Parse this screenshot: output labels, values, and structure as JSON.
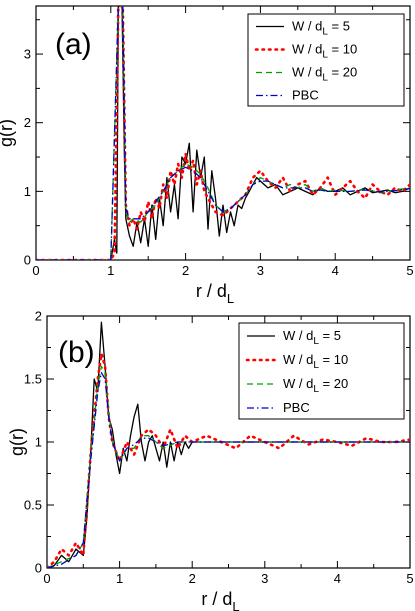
{
  "chart_data": [
    {
      "type": "line",
      "panel_label": "(a)",
      "xlabel_main": "r / d",
      "xlabel_sub": "L",
      "ylabel": "g(r)",
      "xlim": [
        0,
        5
      ],
      "ylim": [
        0,
        3.7
      ],
      "xticks": [
        "0",
        "1",
        "2",
        "3",
        "4",
        "5"
      ],
      "yticks": [
        "0",
        "1",
        "2",
        "3"
      ],
      "xtick_values": [
        0,
        1,
        2,
        3,
        4,
        5
      ],
      "ytick_values": [
        0,
        1,
        2,
        3
      ],
      "legend": {
        "placement": "top-right",
        "entries": [
          {
            "label_main": "W / d",
            "label_sub": "L",
            "label_tail": " = 5"
          },
          {
            "label_main": "W / d",
            "label_sub": "L",
            "label_tail": " = 10"
          },
          {
            "label_main": "W / d",
            "label_sub": "L",
            "label_tail": " = 20"
          },
          {
            "label_main": "PBC",
            "label_sub": "",
            "label_tail": ""
          }
        ]
      },
      "series": [
        {
          "name": "W / dL = 5",
          "color": "#000000",
          "style": "solid",
          "x": [
            0,
            0.5,
            1.0,
            1.05,
            1.08,
            1.1,
            1.12,
            1.15,
            1.18,
            1.2,
            1.25,
            1.3,
            1.35,
            1.4,
            1.45,
            1.5,
            1.55,
            1.6,
            1.65,
            1.7,
            1.75,
            1.8,
            1.85,
            1.9,
            1.95,
            2.0,
            2.05,
            2.1,
            2.15,
            2.2,
            2.25,
            2.3,
            2.35,
            2.4,
            2.45,
            2.5,
            2.55,
            2.6,
            2.65,
            2.7,
            2.75,
            2.8,
            2.85,
            2.9,
            2.95,
            3.0,
            3.1,
            3.2,
            3.3,
            3.4,
            3.5,
            3.6,
            3.7,
            3.8,
            3.9,
            4.0,
            4.1,
            4.2,
            4.3,
            4.4,
            4.5,
            4.6,
            4.7,
            4.8,
            4.9,
            5.0
          ],
          "y": [
            0,
            0,
            0,
            0.3,
            0.1,
            3.7,
            3.7,
            3.7,
            1.6,
            0.6,
            0.35,
            0.2,
            0.55,
            0.25,
            0.6,
            0.2,
            0.8,
            0.3,
            0.9,
            0.5,
            1.2,
            0.7,
            1.1,
            0.6,
            1.5,
            1.4,
            1.7,
            0.7,
            1.6,
            1.2,
            1.5,
            0.45,
            1.3,
            0.9,
            0.35,
            0.8,
            0.4,
            0.7,
            0.5,
            0.8,
            0.75,
            0.9,
            1.0,
            1.1,
            1.2,
            1.15,
            1.05,
            1.1,
            0.95,
            1.0,
            1.05,
            1.0,
            0.95,
            1.05,
            1.0,
            1.0,
            1.05,
            0.95,
            1.0,
            1.05,
            0.98,
            1.0,
            1.02,
            0.98,
            1.0,
            1.05
          ]
        },
        {
          "name": "W / dL = 10",
          "color": "#ff0000",
          "style": "dotted",
          "x": [
            0,
            0.5,
            1.0,
            1.05,
            1.1,
            1.13,
            1.16,
            1.2,
            1.25,
            1.3,
            1.35,
            1.4,
            1.45,
            1.5,
            1.55,
            1.6,
            1.65,
            1.7,
            1.75,
            1.8,
            1.85,
            1.9,
            1.95,
            2.0,
            2.05,
            2.1,
            2.15,
            2.2,
            2.25,
            2.3,
            2.4,
            2.5,
            2.6,
            2.7,
            2.8,
            2.9,
            3.0,
            3.1,
            3.2,
            3.3,
            3.4,
            3.5,
            3.6,
            3.7,
            3.8,
            3.9,
            4.0,
            4.1,
            4.2,
            4.3,
            4.4,
            4.5,
            4.6,
            4.7,
            4.8,
            4.9,
            5.0
          ],
          "y": [
            0,
            0,
            0,
            0.1,
            3.7,
            3.7,
            3.7,
            0.8,
            0.5,
            0.6,
            0.45,
            0.7,
            0.55,
            0.85,
            0.6,
            0.9,
            0.75,
            1.1,
            0.9,
            1.3,
            1.1,
            1.4,
            1.2,
            1.55,
            1.3,
            1.45,
            1.1,
            1.3,
            1.0,
            0.9,
            0.7,
            0.65,
            0.75,
            0.85,
            0.95,
            1.2,
            1.3,
            1.15,
            1.05,
            1.2,
            1.0,
            1.1,
            1.15,
            0.95,
            1.05,
            1.2,
            0.95,
            1.05,
            1.15,
            1.0,
            0.9,
            1.1,
            1.0,
            0.95,
            1.05,
            1.0,
            1.1
          ]
        },
        {
          "name": "W / dL = 20",
          "color": "#00a000",
          "style": "dashed",
          "x": [
            0,
            0.5,
            1.0,
            1.1,
            1.13,
            1.16,
            1.2,
            1.25,
            1.3,
            1.4,
            1.5,
            1.6,
            1.7,
            1.8,
            1.9,
            2.0,
            2.1,
            2.2,
            2.3,
            2.4,
            2.5,
            2.6,
            2.7,
            2.8,
            2.9,
            3.0,
            3.1,
            3.2,
            3.3,
            3.4,
            3.5,
            3.6,
            3.7,
            3.8,
            3.9,
            4.0,
            4.2,
            4.4,
            4.6,
            4.8,
            5.0
          ],
          "y": [
            0,
            0,
            0,
            3.7,
            3.7,
            3.7,
            0.7,
            0.55,
            0.6,
            0.55,
            0.7,
            0.8,
            1.0,
            1.2,
            1.3,
            1.4,
            1.35,
            1.25,
            1.05,
            0.8,
            0.7,
            0.75,
            0.85,
            0.95,
            1.1,
            1.2,
            1.15,
            1.1,
            1.05,
            1.1,
            1.05,
            1.1,
            1.0,
            1.05,
            1.0,
            1.02,
            1.0,
            1.03,
            0.98,
            1.02,
            1.05
          ]
        },
        {
          "name": "PBC",
          "color": "#0000cc",
          "style": "dashdot",
          "x": [
            0,
            0.5,
            1.0,
            1.1,
            1.13,
            1.16,
            1.2,
            1.25,
            1.3,
            1.4,
            1.5,
            1.6,
            1.7,
            1.8,
            1.9,
            2.0,
            2.1,
            2.2,
            2.3,
            2.4,
            2.5,
            2.6,
            2.7,
            2.8,
            2.9,
            3.0,
            3.1,
            3.2,
            3.3,
            3.4,
            3.5,
            3.6,
            3.7,
            3.8,
            3.9,
            4.0,
            4.2,
            4.4,
            4.6,
            4.8,
            5.0
          ],
          "y": [
            0,
            0,
            0,
            3.7,
            3.7,
            3.7,
            0.75,
            0.6,
            0.6,
            0.6,
            0.7,
            0.85,
            1.0,
            1.2,
            1.3,
            1.35,
            1.3,
            1.2,
            1.0,
            0.8,
            0.7,
            0.75,
            0.85,
            0.95,
            1.1,
            1.15,
            1.15,
            1.1,
            1.05,
            1.05,
            1.05,
            1.05,
            1.0,
            1.02,
            1.0,
            1.0,
            1.0,
            1.02,
            0.99,
            1.01,
            1.04
          ]
        }
      ]
    },
    {
      "type": "line",
      "panel_label": "(b)",
      "xlabel_main": "r / d",
      "xlabel_sub": "L",
      "ylabel": "g(r)",
      "xlim": [
        0,
        5
      ],
      "ylim": [
        0,
        2
      ],
      "xticks": [
        "0",
        "1",
        "2",
        "3",
        "4",
        "5"
      ],
      "yticks": [
        "0",
        "0.5",
        "1",
        "1.5",
        "2"
      ],
      "xtick_values": [
        0,
        1,
        2,
        3,
        4,
        5
      ],
      "ytick_values": [
        0,
        0.5,
        1,
        1.5,
        2
      ],
      "legend": {
        "placement": "top-right",
        "entries": [
          {
            "label_main": "W / d",
            "label_sub": "L",
            "label_tail": " = 5"
          },
          {
            "label_main": "W / d",
            "label_sub": "L",
            "label_tail": " = 10"
          },
          {
            "label_main": "W / d",
            "label_sub": "L",
            "label_tail": " = 20"
          },
          {
            "label_main": "PBC",
            "label_sub": "",
            "label_tail": ""
          }
        ]
      },
      "series": [
        {
          "name": "W / dL = 5",
          "color": "#000000",
          "style": "solid",
          "x": [
            0,
            0.1,
            0.2,
            0.3,
            0.4,
            0.5,
            0.55,
            0.6,
            0.65,
            0.7,
            0.75,
            0.8,
            0.85,
            0.9,
            0.95,
            1.0,
            1.05,
            1.1,
            1.15,
            1.2,
            1.25,
            1.3,
            1.35,
            1.4,
            1.45,
            1.5,
            1.55,
            1.6,
            1.65,
            1.7,
            1.75,
            1.8,
            1.85,
            1.9,
            1.95,
            2.0,
            2.1,
            2.2,
            2.4,
            2.6,
            2.8,
            3.0,
            3.2,
            3.4,
            3.6,
            3.8,
            4.0,
            4.2,
            4.4,
            4.6,
            4.8,
            5.0
          ],
          "y": [
            0,
            0.02,
            0.1,
            0.05,
            0.15,
            0.1,
            0.4,
            0.9,
            1.5,
            1.4,
            1.95,
            1.6,
            1.2,
            1.1,
            0.9,
            0.75,
            0.95,
            0.85,
            1.05,
            1.2,
            1.3,
            1.0,
            0.85,
            1.0,
            1.05,
            0.95,
            0.85,
            1.0,
            0.8,
            1.0,
            0.85,
            1.0,
            0.9,
            1.0,
            0.95,
            1.0,
            1.0,
            1.0,
            1.0,
            1.0,
            1.0,
            1.0,
            1.0,
            1.0,
            1.0,
            1.0,
            1.0,
            1.0,
            1.0,
            1.0,
            1.0,
            1.0
          ]
        },
        {
          "name": "W / dL = 10",
          "color": "#ff0000",
          "style": "dotted",
          "x": [
            0,
            0.1,
            0.2,
            0.3,
            0.4,
            0.5,
            0.6,
            0.7,
            0.75,
            0.8,
            0.85,
            0.9,
            1.0,
            1.1,
            1.2,
            1.3,
            1.4,
            1.5,
            1.6,
            1.7,
            1.8,
            1.9,
            2.0,
            2.2,
            2.4,
            2.6,
            2.8,
            3.0,
            3.2,
            3.4,
            3.6,
            3.8,
            4.0,
            4.2,
            4.4,
            4.6,
            4.8,
            5.0
          ],
          "y": [
            0,
            0.05,
            0.15,
            0.1,
            0.2,
            0.1,
            0.9,
            1.5,
            1.7,
            1.6,
            1.2,
            1.0,
            0.85,
            1.0,
            0.9,
            1.05,
            1.1,
            1.05,
            0.95,
            1.1,
            0.95,
            1.05,
            1.0,
            1.05,
            1.0,
            0.95,
            1.05,
            1.0,
            0.95,
            1.05,
            0.98,
            1.02,
            1.0,
            0.97,
            1.03,
            1.0,
            1.0,
            1.02
          ]
        },
        {
          "name": "W / dL = 20",
          "color": "#00a000",
          "style": "dashed",
          "x": [
            0,
            0.2,
            0.4,
            0.5,
            0.6,
            0.7,
            0.75,
            0.8,
            0.85,
            0.9,
            1.0,
            1.1,
            1.2,
            1.3,
            1.4,
            1.5,
            1.6,
            1.8,
            2.0,
            2.5,
            3.0,
            3.5,
            4.0,
            4.5,
            5.0
          ],
          "y": [
            0,
            0.05,
            0.1,
            0.2,
            0.9,
            1.45,
            1.6,
            1.55,
            1.25,
            1.0,
            0.85,
            0.95,
            0.95,
            1.05,
            1.05,
            1.0,
            0.95,
            1.0,
            1.0,
            1.0,
            1.0,
            1.0,
            1.0,
            1.0,
            1.0
          ]
        },
        {
          "name": "PBC",
          "color": "#0000cc",
          "style": "dashdot",
          "x": [
            0,
            0.2,
            0.4,
            0.5,
            0.6,
            0.7,
            0.75,
            0.8,
            0.85,
            0.9,
            1.0,
            1.1,
            1.2,
            1.3,
            1.4,
            1.5,
            1.6,
            1.8,
            2.0,
            2.5,
            3.0,
            3.5,
            4.0,
            4.5,
            5.0
          ],
          "y": [
            0,
            0.03,
            0.1,
            0.2,
            0.85,
            1.4,
            1.55,
            1.5,
            1.2,
            1.0,
            0.85,
            0.95,
            0.98,
            1.03,
            1.03,
            1.0,
            0.97,
            1.0,
            1.0,
            1.0,
            1.0,
            1.0,
            1.0,
            1.0,
            1.0
          ]
        }
      ]
    }
  ]
}
